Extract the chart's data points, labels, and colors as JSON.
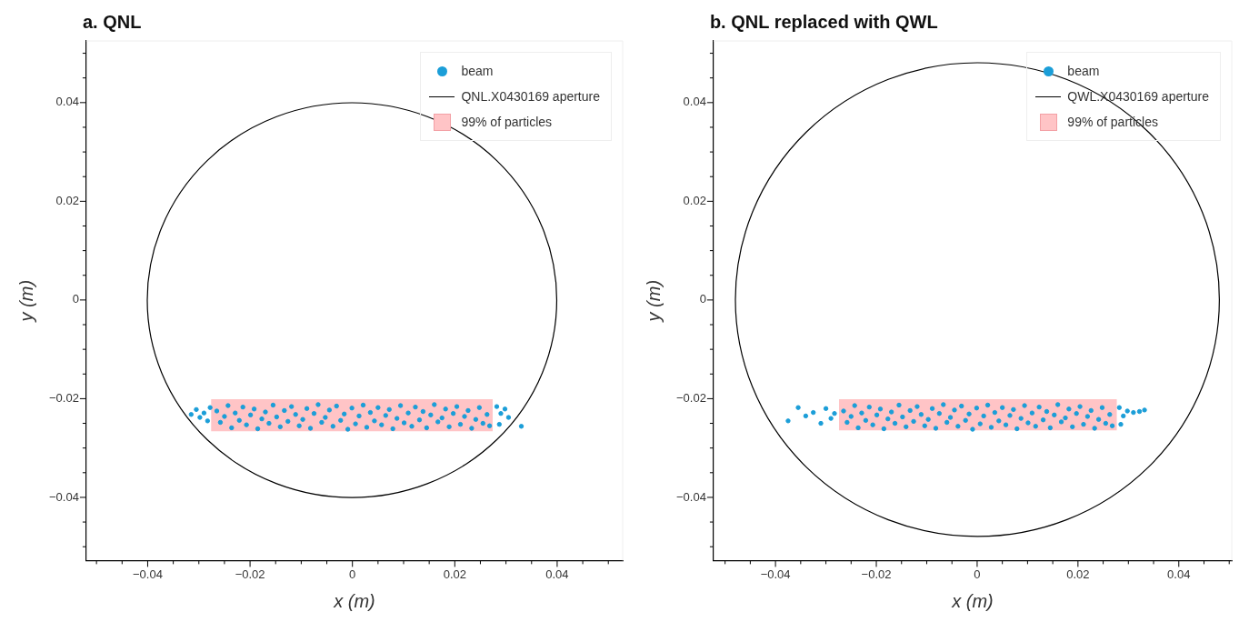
{
  "chart_data": [
    {
      "type": "scatter",
      "title": "a. QNL",
      "xlabel": "x (m)",
      "ylabel": "y (m)",
      "xlim": [
        -0.052,
        0.0528
      ],
      "ylim": [
        -0.0528,
        0.0525
      ],
      "legend": "top right",
      "annotations": [
        "QNL.X0430169 aperture"
      ],
      "xticks": [
        {
          "value": -0.05,
          "label": null
        },
        {
          "value": -0.045,
          "label": null
        },
        {
          "value": -0.04,
          "label": "−0.04"
        },
        {
          "value": -0.035,
          "label": null
        },
        {
          "value": -0.03,
          "label": null
        },
        {
          "value": -0.025,
          "label": null
        },
        {
          "value": -0.02,
          "label": "−0.02"
        },
        {
          "value": -0.015,
          "label": null
        },
        {
          "value": -0.01,
          "label": null
        },
        {
          "value": -0.005,
          "label": null
        },
        0,
        {
          "value": 0.005,
          "label": null
        },
        {
          "value": 0.01,
          "label": null
        },
        {
          "value": 0.015,
          "label": null
        },
        0.02,
        {
          "value": 0.025,
          "label": null
        },
        {
          "value": 0.03,
          "label": null
        },
        {
          "value": 0.035,
          "label": null
        },
        0.04,
        {
          "value": 0.045,
          "label": null
        },
        {
          "value": 0.05,
          "label": null
        }
      ],
      "yticks": [
        {
          "value": -0.05,
          "label": null
        },
        {
          "value": -0.045,
          "label": null
        },
        {
          "value": -0.04,
          "label": "−0.04"
        },
        {
          "value": -0.035,
          "label": null
        },
        {
          "value": -0.03,
          "label": null
        },
        {
          "value": -0.025,
          "label": null
        },
        {
          "value": -0.02,
          "label": "−0.02"
        },
        {
          "value": -0.015,
          "label": null
        },
        {
          "value": -0.01,
          "label": null
        },
        {
          "value": -0.005,
          "label": null
        },
        0,
        {
          "value": 0.005,
          "label": null
        },
        {
          "value": 0.01,
          "label": null
        },
        {
          "value": 0.015,
          "label": null
        },
        0.02,
        {
          "value": 0.025,
          "label": null
        },
        {
          "value": 0.03,
          "label": null
        },
        {
          "value": 0.035,
          "label": null
        },
        0.04,
        {
          "value": 0.045,
          "label": null
        },
        {
          "value": 0.05,
          "label": null
        }
      ],
      "series": [
        {
          "name": "beam",
          "type": "scatter",
          "marker": "circle",
          "color": "#1b9ed8",
          "x": [
            -0.0265,
            -0.0258,
            -0.025,
            -0.0243,
            -0.0236,
            -0.0229,
            -0.0221,
            -0.0214,
            -0.0207,
            -0.0199,
            -0.0192,
            -0.0185,
            -0.0177,
            -0.017,
            -0.0163,
            -0.0155,
            -0.0148,
            -0.0141,
            -0.0133,
            -0.0126,
            -0.0119,
            -0.0111,
            -0.0104,
            -0.0097,
            -0.0089,
            -0.0082,
            -0.0075,
            -0.0067,
            -0.006,
            -0.0053,
            -0.0045,
            -0.0038,
            -0.0031,
            -0.0023,
            -0.0016,
            -0.0009,
            -0.0001,
            0.0006,
            0.0013,
            0.0021,
            0.0028,
            0.0035,
            0.0043,
            0.005,
            0.0057,
            0.0065,
            0.0072,
            0.0079,
            0.0087,
            0.0094,
            0.0101,
            0.0109,
            0.0116,
            0.0123,
            0.0131,
            0.0138,
            0.0145,
            0.0153,
            0.016,
            0.0167,
            0.0175,
            0.0182,
            0.0189,
            0.0197,
            0.0204,
            0.0211,
            0.0219,
            0.0226,
            0.0233,
            0.0241,
            0.0248,
            0.0255,
            0.0263,
            0.0268,
            -0.0305,
            -0.0298,
            -0.029,
            -0.0283,
            -0.0315,
            -0.0278,
            0.0282,
            0.029,
            0.0298,
            0.0287,
            0.0305,
            0.033
          ],
          "values": [
            -0.0225,
            -0.0248,
            -0.0236,
            -0.0214,
            -0.0259,
            -0.0229,
            -0.0244,
            -0.0217,
            -0.0253,
            -0.0233,
            -0.0221,
            -0.0261,
            -0.0241,
            -0.0227,
            -0.025,
            -0.0213,
            -0.0237,
            -0.0257,
            -0.0224,
            -0.0246,
            -0.0216,
            -0.0232,
            -0.0255,
            -0.0242,
            -0.022,
            -0.026,
            -0.023,
            -0.0212,
            -0.0248,
            -0.0238,
            -0.0223,
            -0.0256,
            -0.0215,
            -0.0244,
            -0.0231,
            -0.0262,
            -0.0219,
            -0.0251,
            -0.0235,
            -0.0213,
            -0.0258,
            -0.0228,
            -0.0245,
            -0.0218,
            -0.0253,
            -0.0234,
            -0.0222,
            -0.0261,
            -0.024,
            -0.0214,
            -0.0249,
            -0.0229,
            -0.0256,
            -0.0217,
            -0.0243,
            -0.0226,
            -0.0259,
            -0.0233,
            -0.0212,
            -0.0247,
            -0.0239,
            -0.0221,
            -0.0257,
            -0.023,
            -0.0216,
            -0.0252,
            -0.0236,
            -0.0224,
            -0.026,
            -0.0242,
            -0.0218,
            -0.025,
            -0.0232,
            -0.0255,
            -0.0222,
            -0.0238,
            -0.0229,
            -0.0245,
            -0.0232,
            -0.0218,
            -0.0216,
            -0.023,
            -0.0221,
            -0.0252,
            -0.0238,
            -0.0256
          ]
        },
        {
          "name": "99% of particles",
          "type": "area",
          "color": "#ffc4c6",
          "x": [
            -0.0276,
            -0.0276,
            0.0274,
            0.0274,
            -0.0276
          ],
          "values": [
            -0.0266,
            -0.0201,
            -0.0201,
            -0.0266,
            -0.0266
          ]
        }
      ]
    },
    {
      "type": "scatter",
      "title": "b. QNL replaced with QWL",
      "xlabel": "x (m)",
      "ylabel": "y (m)",
      "xlim": [
        -0.0523,
        0.0505
      ],
      "ylim": [
        -0.0528,
        0.0525
      ],
      "legend": "top right",
      "annotations": [
        "QWL.X0430169 aperture"
      ],
      "xticks": [
        {
          "value": -0.05,
          "label": null
        },
        {
          "value": -0.045,
          "label": null
        },
        {
          "value": -0.04,
          "label": "−0.04"
        },
        {
          "value": -0.035,
          "label": null
        },
        {
          "value": -0.03,
          "label": null
        },
        {
          "value": -0.025,
          "label": null
        },
        {
          "value": -0.02,
          "label": "−0.02"
        },
        {
          "value": -0.015,
          "label": null
        },
        {
          "value": -0.01,
          "label": null
        },
        {
          "value": -0.005,
          "label": null
        },
        0,
        {
          "value": 0.005,
          "label": null
        },
        {
          "value": 0.01,
          "label": null
        },
        {
          "value": 0.015,
          "label": null
        },
        0.02,
        {
          "value": 0.025,
          "label": null
        },
        {
          "value": 0.03,
          "label": null
        },
        {
          "value": 0.035,
          "label": null
        },
        0.04,
        {
          "value": 0.045,
          "label": null
        },
        {
          "value": 0.05,
          "label": null
        }
      ],
      "yticks": [
        {
          "value": -0.05,
          "label": null
        },
        {
          "value": -0.045,
          "label": null
        },
        {
          "value": -0.04,
          "label": "−0.04"
        },
        {
          "value": -0.035,
          "label": null
        },
        {
          "value": -0.03,
          "label": null
        },
        {
          "value": -0.025,
          "label": null
        },
        {
          "value": -0.02,
          "label": "−0.02"
        },
        {
          "value": -0.015,
          "label": null
        },
        {
          "value": -0.01,
          "label": null
        },
        {
          "value": -0.005,
          "label": null
        },
        0,
        {
          "value": 0.005,
          "label": null
        },
        {
          "value": 0.01,
          "label": null
        },
        {
          "value": 0.015,
          "label": null
        },
        0.02,
        {
          "value": 0.025,
          "label": null
        },
        {
          "value": 0.03,
          "label": null
        },
        {
          "value": 0.035,
          "label": null
        },
        0.04,
        {
          "value": 0.045,
          "label": null
        },
        {
          "value": 0.05,
          "label": null
        }
      ],
      "series": [
        {
          "name": "beam",
          "type": "scatter",
          "marker": "circle",
          "color": "#1b9ed8",
          "x": [
            -0.0265,
            -0.0258,
            -0.025,
            -0.0243,
            -0.0236,
            -0.0229,
            -0.0221,
            -0.0214,
            -0.0207,
            -0.0199,
            -0.0192,
            -0.0185,
            -0.0177,
            -0.017,
            -0.0163,
            -0.0155,
            -0.0148,
            -0.0141,
            -0.0133,
            -0.0126,
            -0.0119,
            -0.0111,
            -0.0104,
            -0.0097,
            -0.0089,
            -0.0082,
            -0.0075,
            -0.0067,
            -0.006,
            -0.0053,
            -0.0045,
            -0.0038,
            -0.0031,
            -0.0023,
            -0.0016,
            -0.0009,
            -0.0001,
            0.0006,
            0.0013,
            0.0021,
            0.0028,
            0.0035,
            0.0043,
            0.005,
            0.0057,
            0.0065,
            0.0072,
            0.0079,
            0.0087,
            0.0094,
            0.0101,
            0.0109,
            0.0116,
            0.0123,
            0.0131,
            0.0138,
            0.0145,
            0.0153,
            0.016,
            0.0167,
            0.0175,
            0.0182,
            0.0189,
            0.0197,
            0.0204,
            0.0211,
            0.0219,
            0.0226,
            0.0233,
            0.0241,
            0.0248,
            0.0255,
            0.0263,
            0.0268,
            -0.0375,
            -0.0355,
            -0.034,
            -0.0325,
            -0.031,
            -0.03,
            -0.029,
            -0.0283,
            0.0282,
            0.029,
            0.0298,
            0.031,
            0.0322,
            0.0332,
            0.0285
          ],
          "values": [
            -0.0225,
            -0.0248,
            -0.0236,
            -0.0214,
            -0.0259,
            -0.0229,
            -0.0244,
            -0.0217,
            -0.0253,
            -0.0233,
            -0.0221,
            -0.0261,
            -0.0241,
            -0.0227,
            -0.025,
            -0.0213,
            -0.0237,
            -0.0257,
            -0.0224,
            -0.0246,
            -0.0216,
            -0.0232,
            -0.0255,
            -0.0242,
            -0.022,
            -0.026,
            -0.023,
            -0.0212,
            -0.0248,
            -0.0238,
            -0.0223,
            -0.0256,
            -0.0215,
            -0.0244,
            -0.0231,
            -0.0262,
            -0.0219,
            -0.0251,
            -0.0235,
            -0.0213,
            -0.0258,
            -0.0228,
            -0.0245,
            -0.0218,
            -0.0253,
            -0.0234,
            -0.0222,
            -0.0261,
            -0.024,
            -0.0214,
            -0.0249,
            -0.0229,
            -0.0256,
            -0.0217,
            -0.0243,
            -0.0226,
            -0.0259,
            -0.0233,
            -0.0212,
            -0.0247,
            -0.0239,
            -0.0221,
            -0.0257,
            -0.023,
            -0.0216,
            -0.0252,
            -0.0236,
            -0.0224,
            -0.026,
            -0.0242,
            -0.0218,
            -0.025,
            -0.0232,
            -0.0255,
            -0.0245,
            -0.0218,
            -0.0235,
            -0.0228,
            -0.025,
            -0.022,
            -0.024,
            -0.023,
            -0.0218,
            -0.0235,
            -0.0225,
            -0.0228,
            -0.0226,
            -0.0223,
            -0.0252
          ]
        },
        {
          "name": "99% of particles",
          "type": "area",
          "color": "#ffc4c6",
          "x": [
            -0.0274,
            -0.0274,
            0.0277,
            0.0277,
            -0.0274
          ],
          "values": [
            -0.0264,
            -0.0201,
            -0.0201,
            -0.0264,
            -0.0264
          ]
        }
      ]
    }
  ]
}
